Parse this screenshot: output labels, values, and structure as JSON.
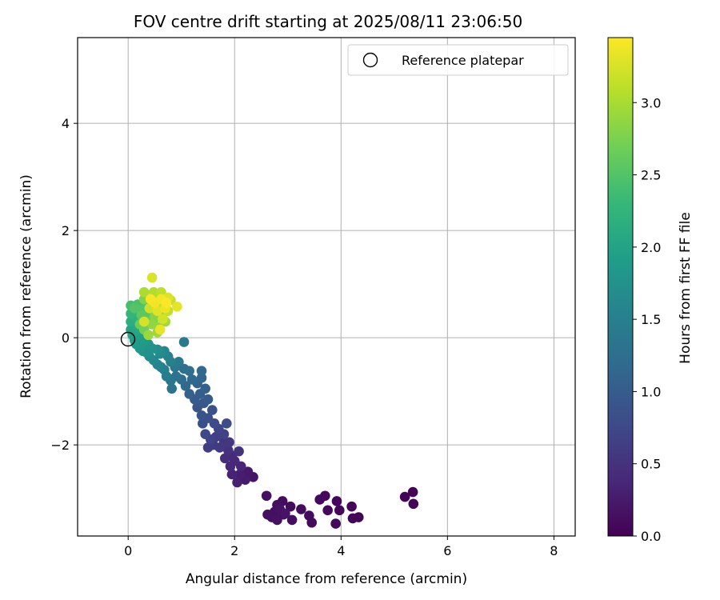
{
  "chart_data": {
    "type": "scatter",
    "title": "FOV centre drift starting at 2025/08/11 23:06:50",
    "xlabel": "Angular distance from reference (arcmin)",
    "ylabel": "Rotation from reference (arcmin)",
    "xlim": [
      -0.95,
      8.4
    ],
    "ylim": [
      -3.7,
      5.6
    ],
    "xticks": [
      0,
      2,
      4,
      6,
      8
    ],
    "yticks": [
      -2,
      0,
      2,
      4
    ],
    "xtick_labels": [
      "0",
      "2",
      "4",
      "6",
      "8"
    ],
    "ytick_labels": [
      "−2",
      "0",
      "2",
      "4"
    ],
    "grid": true,
    "legend": {
      "position": "top-right",
      "entries": [
        "Reference platepar"
      ]
    },
    "reference_point": {
      "x": 0,
      "y": 0
    },
    "colorbar": {
      "label": "Hours from first FF file",
      "colormap": "viridis",
      "range": [
        0,
        3.45
      ],
      "ticks": [
        0.0,
        0.5,
        1.0,
        1.5,
        2.0,
        2.5,
        3.0
      ],
      "tick_labels": [
        "0.0",
        "0.5",
        "1.0",
        "1.5",
        "2.0",
        "2.5",
        "3.0"
      ]
    },
    "points": [
      [
        5.35,
        -2.88,
        0.02
      ],
      [
        5.2,
        -2.97,
        0.03
      ],
      [
        5.36,
        -3.1,
        0.03
      ],
      [
        4.2,
        -3.15,
        0.04
      ],
      [
        4.33,
        -3.35,
        0.04
      ],
      [
        4.22,
        -3.37,
        0.05
      ],
      [
        3.92,
        -3.05,
        0.06
      ],
      [
        3.97,
        -3.22,
        0.06
      ],
      [
        3.9,
        -3.47,
        0.07
      ],
      [
        3.7,
        -2.95,
        0.07
      ],
      [
        3.6,
        -3.02,
        0.08
      ],
      [
        3.75,
        -3.22,
        0.08
      ],
      [
        3.45,
        -3.45,
        0.09
      ],
      [
        3.4,
        -3.32,
        0.1
      ],
      [
        3.25,
        -3.2,
        0.1
      ],
      [
        3.05,
        -3.15,
        0.11
      ],
      [
        3.08,
        -3.4,
        0.12
      ],
      [
        2.9,
        -3.05,
        0.12
      ],
      [
        2.92,
        -3.3,
        0.13
      ],
      [
        2.8,
        -3.12,
        0.13
      ],
      [
        2.75,
        -3.25,
        0.14
      ],
      [
        2.7,
        -3.35,
        0.15
      ],
      [
        2.62,
        -3.3,
        0.15
      ],
      [
        2.6,
        -2.95,
        0.16
      ],
      [
        2.8,
        -3.4,
        0.16
      ],
      [
        2.85,
        -3.2,
        0.17
      ],
      [
        2.95,
        -3.28,
        0.18
      ],
      [
        2.35,
        -2.6,
        0.2
      ],
      [
        2.25,
        -2.5,
        0.23
      ],
      [
        2.2,
        -2.65,
        0.26
      ],
      [
        2.1,
        -2.55,
        0.28
      ],
      [
        2.05,
        -2.7,
        0.3
      ],
      [
        1.95,
        -2.55,
        0.33
      ],
      [
        2.12,
        -2.4,
        0.35
      ],
      [
        2.0,
        -2.3,
        0.38
      ],
      [
        1.92,
        -2.4,
        0.4
      ],
      [
        1.95,
        -2.2,
        0.42
      ],
      [
        1.82,
        -2.25,
        0.45
      ],
      [
        1.88,
        -2.1,
        0.48
      ],
      [
        2.08,
        -2.12,
        0.5
      ],
      [
        1.8,
        -1.95,
        0.53
      ],
      [
        1.9,
        -1.95,
        0.55
      ],
      [
        1.72,
        -2.05,
        0.57
      ],
      [
        1.6,
        -2.0,
        0.6
      ],
      [
        1.5,
        -2.05,
        0.62
      ],
      [
        1.65,
        -1.85,
        0.65
      ],
      [
        1.8,
        -1.8,
        0.67
      ],
      [
        1.55,
        -1.9,
        0.7
      ],
      [
        1.7,
        -1.7,
        0.72
      ],
      [
        1.45,
        -1.8,
        0.75
      ],
      [
        1.62,
        -1.6,
        0.77
      ],
      [
        1.85,
        -1.6,
        0.8
      ],
      [
        1.4,
        -1.6,
        0.82
      ],
      [
        1.5,
        -1.5,
        0.85
      ],
      [
        1.58,
        -1.35,
        0.87
      ],
      [
        1.38,
        -1.45,
        0.9
      ],
      [
        1.3,
        -1.3,
        0.92
      ],
      [
        1.42,
        -1.22,
        0.95
      ],
      [
        1.5,
        -1.15,
        0.97
      ],
      [
        1.25,
        -1.15,
        1.0
      ],
      [
        1.35,
        -1.05,
        1.02
      ],
      [
        1.45,
        -0.95,
        1.05
      ],
      [
        1.15,
        -1.05,
        1.07
      ],
      [
        1.3,
        -0.85,
        1.1
      ],
      [
        1.38,
        -0.75,
        1.12
      ],
      [
        1.08,
        -0.9,
        1.15
      ],
      [
        1.2,
        -0.78,
        1.17
      ],
      [
        1.38,
        -0.62,
        1.2
      ],
      [
        1.0,
        -0.78,
        1.22
      ],
      [
        1.15,
        -0.62,
        1.25
      ],
      [
        1.05,
        -0.58,
        1.27
      ],
      [
        0.9,
        -0.72,
        1.3
      ],
      [
        0.82,
        -0.95,
        1.32
      ],
      [
        0.8,
        -0.8,
        1.35
      ],
      [
        0.88,
        -0.55,
        1.37
      ],
      [
        1.05,
        -0.08,
        1.4
      ],
      [
        0.95,
        -0.45,
        1.42
      ],
      [
        0.72,
        -0.72,
        1.45
      ],
      [
        0.68,
        -0.6,
        1.47
      ],
      [
        0.8,
        -0.45,
        1.5
      ],
      [
        0.62,
        -0.55,
        1.53
      ],
      [
        0.75,
        -0.35,
        1.55
      ],
      [
        0.55,
        -0.5,
        1.57
      ],
      [
        0.68,
        -0.25,
        1.6
      ],
      [
        0.48,
        -0.42,
        1.62
      ],
      [
        0.6,
        -0.3,
        1.65
      ],
      [
        0.4,
        -0.35,
        1.67
      ],
      [
        0.55,
        -0.22,
        1.7
      ],
      [
        0.35,
        -0.28,
        1.72
      ],
      [
        0.45,
        -0.2,
        1.75
      ],
      [
        0.28,
        -0.25,
        1.77
      ],
      [
        0.38,
        -0.12,
        1.8
      ],
      [
        0.22,
        -0.2,
        1.82
      ],
      [
        0.3,
        -0.08,
        1.85
      ],
      [
        0.15,
        -0.12,
        1.87
      ],
      [
        0.25,
        0.0,
        1.9
      ],
      [
        0.12,
        -0.05,
        1.92
      ],
      [
        0.2,
        0.05,
        1.95
      ],
      [
        0.08,
        0.05,
        1.97
      ],
      [
        0.15,
        0.12,
        2.0
      ],
      [
        0.05,
        0.15,
        2.02
      ],
      [
        0.22,
        0.18,
        2.05
      ],
      [
        0.1,
        0.25,
        2.07
      ],
      [
        0.3,
        0.2,
        2.1
      ],
      [
        0.18,
        0.3,
        2.12
      ],
      [
        0.05,
        0.3,
        2.15
      ],
      [
        0.28,
        0.32,
        2.17
      ],
      [
        0.12,
        0.4,
        2.2
      ],
      [
        0.35,
        0.38,
        2.22
      ],
      [
        0.2,
        0.45,
        2.25
      ],
      [
        0.05,
        0.45,
        2.27
      ],
      [
        0.3,
        0.48,
        2.3
      ],
      [
        0.15,
        0.55,
        2.32
      ],
      [
        0.4,
        0.5,
        2.35
      ],
      [
        0.25,
        0.6,
        2.37
      ],
      [
        0.05,
        0.6,
        2.4
      ],
      [
        0.35,
        0.62,
        2.42
      ],
      [
        0.18,
        0.62,
        2.45
      ],
      [
        0.45,
        0.58,
        2.47
      ],
      [
        0.3,
        0.55,
        2.5
      ],
      [
        0.12,
        0.55,
        2.52
      ],
      [
        0.4,
        0.45,
        2.55
      ],
      [
        0.25,
        0.42,
        2.57
      ],
      [
        0.5,
        0.48,
        2.6
      ],
      [
        0.35,
        0.3,
        2.62
      ],
      [
        0.22,
        0.25,
        2.65
      ],
      [
        0.48,
        0.35,
        2.67
      ],
      [
        0.3,
        0.15,
        2.7
      ],
      [
        0.55,
        0.62,
        2.72
      ],
      [
        0.42,
        0.72,
        2.75
      ],
      [
        0.3,
        0.72,
        2.77
      ],
      [
        0.6,
        0.55,
        2.8
      ],
      [
        0.5,
        0.4,
        2.82
      ],
      [
        0.65,
        0.45,
        2.85
      ],
      [
        0.45,
        0.25,
        2.87
      ],
      [
        0.58,
        0.2,
        2.9
      ],
      [
        0.38,
        0.05,
        2.92
      ],
      [
        0.55,
        0.1,
        2.95
      ],
      [
        0.7,
        0.3,
        2.97
      ],
      [
        0.6,
        0.72,
        3.0
      ],
      [
        0.3,
        0.85,
        3.02
      ],
      [
        0.48,
        0.85,
        3.05
      ],
      [
        0.7,
        0.62,
        3.07
      ],
      [
        0.62,
        0.85,
        3.1
      ],
      [
        0.75,
        0.5,
        3.12
      ],
      [
        0.55,
        0.6,
        3.15
      ],
      [
        0.8,
        0.7,
        3.17
      ],
      [
        0.4,
        0.55,
        3.2
      ],
      [
        0.65,
        0.35,
        3.22
      ],
      [
        0.3,
        0.3,
        3.24
      ],
      [
        0.45,
        1.12,
        3.26
      ],
      [
        0.75,
        0.75,
        3.28
      ],
      [
        0.55,
        0.5,
        3.3
      ],
      [
        0.92,
        0.58,
        3.32
      ],
      [
        0.6,
        0.15,
        3.34
      ],
      [
        0.7,
        0.55,
        3.36
      ],
      [
        0.5,
        0.65,
        3.38
      ],
      [
        0.62,
        0.72,
        3.4
      ],
      [
        0.42,
        0.72,
        3.42
      ],
      [
        0.72,
        0.65,
        3.44
      ]
    ]
  }
}
